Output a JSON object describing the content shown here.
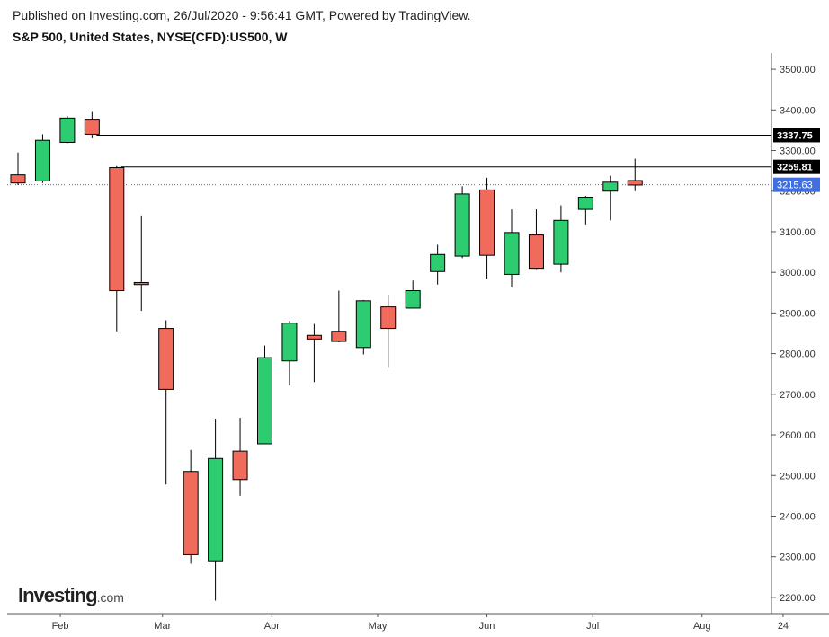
{
  "header": {
    "published": "Published on Investing.com, 26/Jul/2020 - 9:56:41 GMT, Powered by TradingView.",
    "symbol": "S&P 500, United States, NYSE(CFD):US500, W"
  },
  "logo": {
    "brand": "Investing",
    "suffix": ".com"
  },
  "colors": {
    "up": "#2ecc71",
    "down": "#f16b5c",
    "last_price": "#3f6fe0",
    "level_label": "#000000"
  },
  "chart_data": {
    "type": "candlestick",
    "interval": "weekly",
    "ylim": [
      2160,
      3540
    ],
    "y_ticks": [
      2200,
      2300,
      2400,
      2500,
      2600,
      2700,
      2800,
      2900,
      3000,
      3100,
      3200,
      3300,
      3400,
      3500
    ],
    "x_labels": [
      {
        "label": "Feb",
        "date": "2020-02-01"
      },
      {
        "label": "Mar",
        "date": "2020-03-01"
      },
      {
        "label": "Apr",
        "date": "2020-04-01"
      },
      {
        "label": "May",
        "date": "2020-05-01"
      },
      {
        "label": "Jun",
        "date": "2020-06-01"
      },
      {
        "label": "Jul",
        "date": "2020-07-01"
      },
      {
        "label": "Aug",
        "date": "2020-08-01"
      },
      {
        "label": "24",
        "date": "2020-08-24"
      }
    ],
    "candles": [
      {
        "week": "2020-01-20",
        "open": 3240,
        "high": 3295,
        "low": 3215,
        "close": 3220
      },
      {
        "week": "2020-01-27",
        "open": 3225,
        "high": 3340,
        "low": 3220,
        "close": 3325
      },
      {
        "week": "2020-02-03",
        "open": 3320,
        "high": 3385,
        "low": 3318,
        "close": 3380
      },
      {
        "week": "2020-02-10",
        "open": 3375,
        "high": 3395,
        "low": 3330,
        "close": 3340
      },
      {
        "week": "2020-02-17",
        "open": 3258,
        "high": 3262,
        "low": 2855,
        "close": 2955
      },
      {
        "week": "2020-02-24",
        "open": 2975,
        "high": 3140,
        "low": 2905,
        "close": 2970
      },
      {
        "week": "2020-03-02",
        "open": 2862,
        "high": 2882,
        "low": 2478,
        "close": 2712
      },
      {
        "week": "2020-03-09",
        "open": 2510,
        "high": 2563,
        "low": 2283,
        "close": 2305
      },
      {
        "week": "2020-03-16",
        "open": 2290,
        "high": 2640,
        "low": 2192,
        "close": 2542
      },
      {
        "week": "2020-03-23",
        "open": 2560,
        "high": 2642,
        "low": 2450,
        "close": 2490
      },
      {
        "week": "2020-03-30",
        "open": 2578,
        "high": 2820,
        "low": 2578,
        "close": 2790
      },
      {
        "week": "2020-04-06",
        "open": 2782,
        "high": 2880,
        "low": 2722,
        "close": 2875
      },
      {
        "week": "2020-04-13",
        "open": 2845,
        "high": 2873,
        "low": 2730,
        "close": 2836
      },
      {
        "week": "2020-04-20",
        "open": 2855,
        "high": 2955,
        "low": 2828,
        "close": 2830
      },
      {
        "week": "2020-04-27",
        "open": 2815,
        "high": 2932,
        "low": 2798,
        "close": 2930
      },
      {
        "week": "2020-05-04",
        "open": 2915,
        "high": 2945,
        "low": 2765,
        "close": 2862
      },
      {
        "week": "2020-05-11",
        "open": 2912,
        "high": 2980,
        "low": 2912,
        "close": 2955
      },
      {
        "week": "2020-05-18",
        "open": 3002,
        "high": 3068,
        "low": 2970,
        "close": 3044
      },
      {
        "week": "2020-05-25",
        "open": 3040,
        "high": 3212,
        "low": 3035,
        "close": 3193
      },
      {
        "week": "2020-06-01",
        "open": 3203,
        "high": 3233,
        "low": 2985,
        "close": 3042
      },
      {
        "week": "2020-06-08",
        "open": 2995,
        "high": 3155,
        "low": 2965,
        "close": 3098
      },
      {
        "week": "2020-06-15",
        "open": 3092,
        "high": 3155,
        "low": 3008,
        "close": 3010
      },
      {
        "week": "2020-06-22",
        "open": 3020,
        "high": 3165,
        "low": 3000,
        "close": 3128
      },
      {
        "week": "2020-06-29",
        "open": 3155,
        "high": 3188,
        "low": 3118,
        "close": 3185
      },
      {
        "week": "2020-07-06",
        "open": 3200,
        "high": 3238,
        "low": 3128,
        "close": 3222
      },
      {
        "week": "2020-07-13",
        "open": 3226,
        "high": 3280,
        "low": 3200,
        "close": 3215
      }
    ],
    "levels": [
      {
        "value": 3337.75,
        "label": "3337.75",
        "kind": "resistance",
        "from_week": "2020-02-10"
      },
      {
        "value": 3259.81,
        "label": "3259.81",
        "kind": "resistance",
        "from_week": "2020-02-17"
      }
    ],
    "last_price": {
      "value": 3215.63,
      "label": "3215.63",
      "style": "dotted"
    },
    "grid": false
  }
}
